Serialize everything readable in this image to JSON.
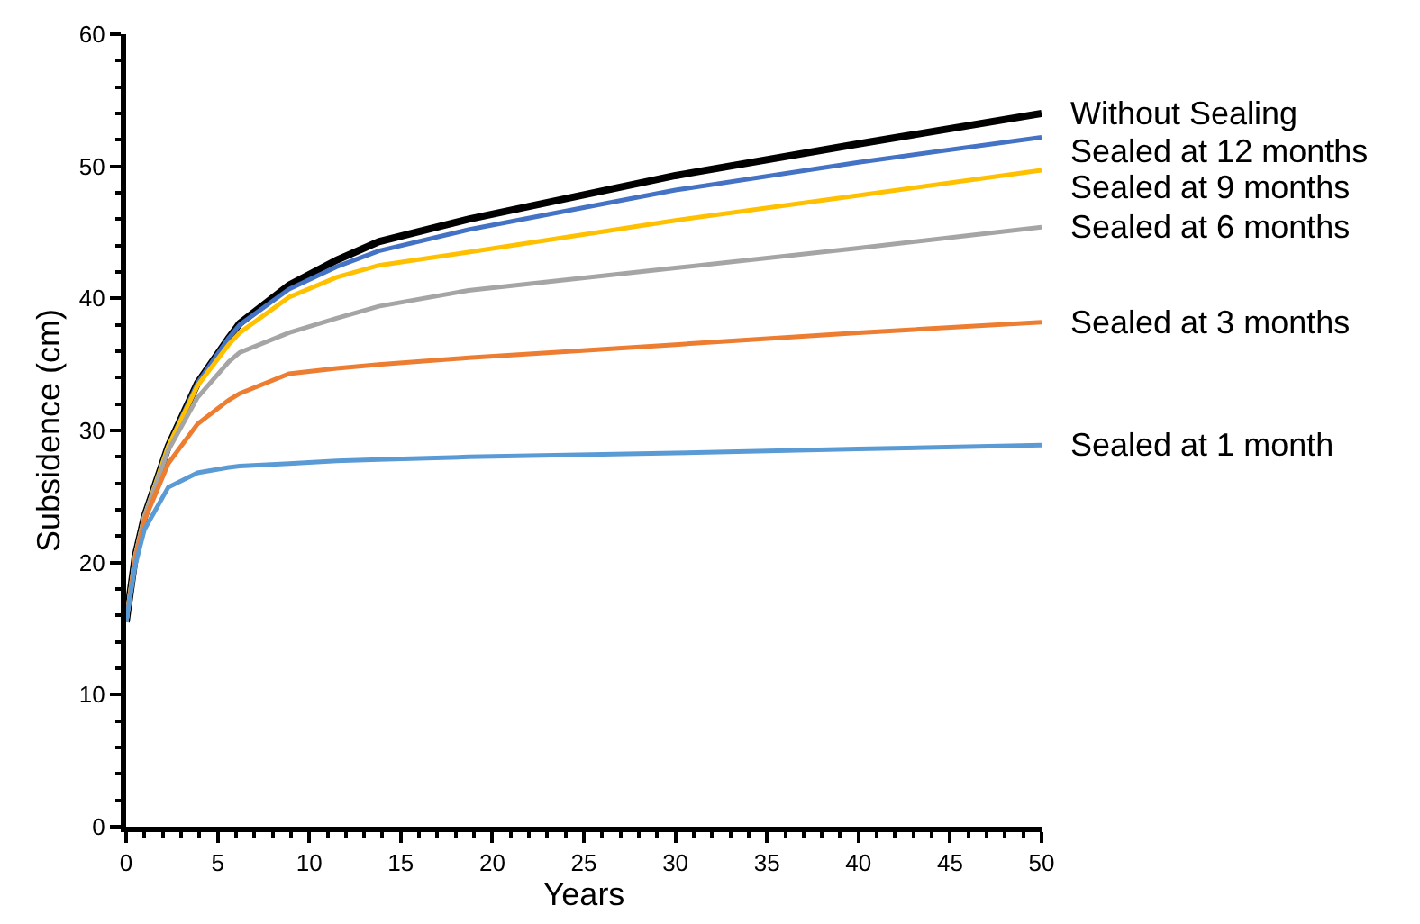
{
  "chart_data": {
    "type": "line",
    "xlabel": "Years",
    "ylabel": "Subsidence (cm)",
    "x": [
      0,
      0.5,
      1,
      2.3,
      3.9,
      5.6,
      6.2,
      8.9,
      11.5,
      13.8,
      18.7,
      30,
      40,
      50
    ],
    "series": [
      {
        "name": "Without Sealing",
        "color": "#000000",
        "values": [
          15.5,
          20.5,
          23.5,
          28.8,
          33.6,
          37.0,
          38.1,
          41.0,
          42.9,
          44.3,
          46.0,
          49.3,
          51.7,
          54.0
        ]
      },
      {
        "name": "Sealed at 12 months",
        "color": "#4472c4",
        "values": [
          15.5,
          20.5,
          23.5,
          28.8,
          33.6,
          37.0,
          38.0,
          40.7,
          42.4,
          43.6,
          45.2,
          48.2,
          50.3,
          52.2
        ]
      },
      {
        "name": "Sealed at 9 months",
        "color": "#ffc000",
        "values": [
          15.5,
          20.5,
          23.5,
          28.8,
          33.4,
          36.5,
          37.4,
          40.1,
          41.6,
          42.5,
          43.5,
          45.9,
          47.8,
          49.7
        ]
      },
      {
        "name": "Sealed at 6 months",
        "color": "#a5a5a5",
        "values": [
          15.5,
          20.5,
          23.5,
          28.5,
          32.5,
          35.2,
          35.9,
          37.4,
          38.5,
          39.4,
          40.6,
          42.3,
          43.8,
          45.4
        ]
      },
      {
        "name": "Sealed at 3 months",
        "color": "#ed7d31",
        "values": [
          15.5,
          20.3,
          23.2,
          27.5,
          30.5,
          32.3,
          32.8,
          34.3,
          34.7,
          35.0,
          35.5,
          36.5,
          37.4,
          38.2
        ]
      },
      {
        "name": "Sealed at 1 month",
        "color": "#5b9bd5",
        "values": [
          15.5,
          19.8,
          22.5,
          25.7,
          26.8,
          27.2,
          27.3,
          27.5,
          27.7,
          27.8,
          28.0,
          28.3,
          28.6,
          28.9
        ]
      }
    ],
    "xlim": [
      0,
      50
    ],
    "ylim": [
      0,
      60
    ],
    "xticks": [
      0,
      5,
      10,
      15,
      20,
      25,
      30,
      35,
      40,
      45,
      50,
      {
        "value": 1,
        "label": null
      },
      {
        "value": 2,
        "label": null
      },
      {
        "value": 3,
        "label": null
      },
      {
        "value": 4,
        "label": null
      },
      {
        "value": 6,
        "label": null
      },
      {
        "value": 7,
        "label": null
      },
      {
        "value": 8,
        "label": null
      },
      {
        "value": 9,
        "label": null
      },
      {
        "value": 11,
        "label": null
      },
      {
        "value": 12,
        "label": null
      },
      {
        "value": 13,
        "label": null
      },
      {
        "value": 14,
        "label": null
      },
      {
        "value": 16,
        "label": null
      },
      {
        "value": 17,
        "label": null
      },
      {
        "value": 18,
        "label": null
      },
      {
        "value": 19,
        "label": null
      },
      {
        "value": 21,
        "label": null
      },
      {
        "value": 22,
        "label": null
      },
      {
        "value": 23,
        "label": null
      },
      {
        "value": 24,
        "label": null
      },
      {
        "value": 26,
        "label": null
      },
      {
        "value": 27,
        "label": null
      },
      {
        "value": 28,
        "label": null
      },
      {
        "value": 29,
        "label": null
      },
      {
        "value": 31,
        "label": null
      },
      {
        "value": 32,
        "label": null
      },
      {
        "value": 33,
        "label": null
      },
      {
        "value": 34,
        "label": null
      },
      {
        "value": 36,
        "label": null
      },
      {
        "value": 37,
        "label": null
      },
      {
        "value": 38,
        "label": null
      },
      {
        "value": 39,
        "label": null
      },
      {
        "value": 41,
        "label": null
      },
      {
        "value": 42,
        "label": null
      },
      {
        "value": 43,
        "label": null
      },
      {
        "value": 44,
        "label": null
      },
      {
        "value": 46,
        "label": null
      },
      {
        "value": 47,
        "label": null
      },
      {
        "value": 48,
        "label": null
      },
      {
        "value": 49,
        "label": null
      }
    ],
    "yticks": [
      0,
      10,
      20,
      30,
      40,
      50,
      60,
      {
        "value": 2,
        "label": null
      },
      {
        "value": 4,
        "label": null
      },
      {
        "value": 6,
        "label": null
      },
      {
        "value": 8,
        "label": null
      },
      {
        "value": 12,
        "label": null
      },
      {
        "value": 14,
        "label": null
      },
      {
        "value": 16,
        "label": null
      },
      {
        "value": 18,
        "label": null
      },
      {
        "value": 22,
        "label": null
      },
      {
        "value": 24,
        "label": null
      },
      {
        "value": 26,
        "label": null
      },
      {
        "value": 28,
        "label": null
      },
      {
        "value": 32,
        "label": null
      },
      {
        "value": 34,
        "label": null
      },
      {
        "value": 36,
        "label": null
      },
      {
        "value": 38,
        "label": null
      },
      {
        "value": 42,
        "label": null
      },
      {
        "value": 44,
        "label": null
      },
      {
        "value": 46,
        "label": null
      },
      {
        "value": 48,
        "label": null
      },
      {
        "value": 52,
        "label": null
      },
      {
        "value": 54,
        "label": null
      },
      {
        "value": 56,
        "label": null
      },
      {
        "value": 58,
        "label": null
      }
    ],
    "legend": false,
    "marker": "none",
    "line_style": "solid"
  }
}
